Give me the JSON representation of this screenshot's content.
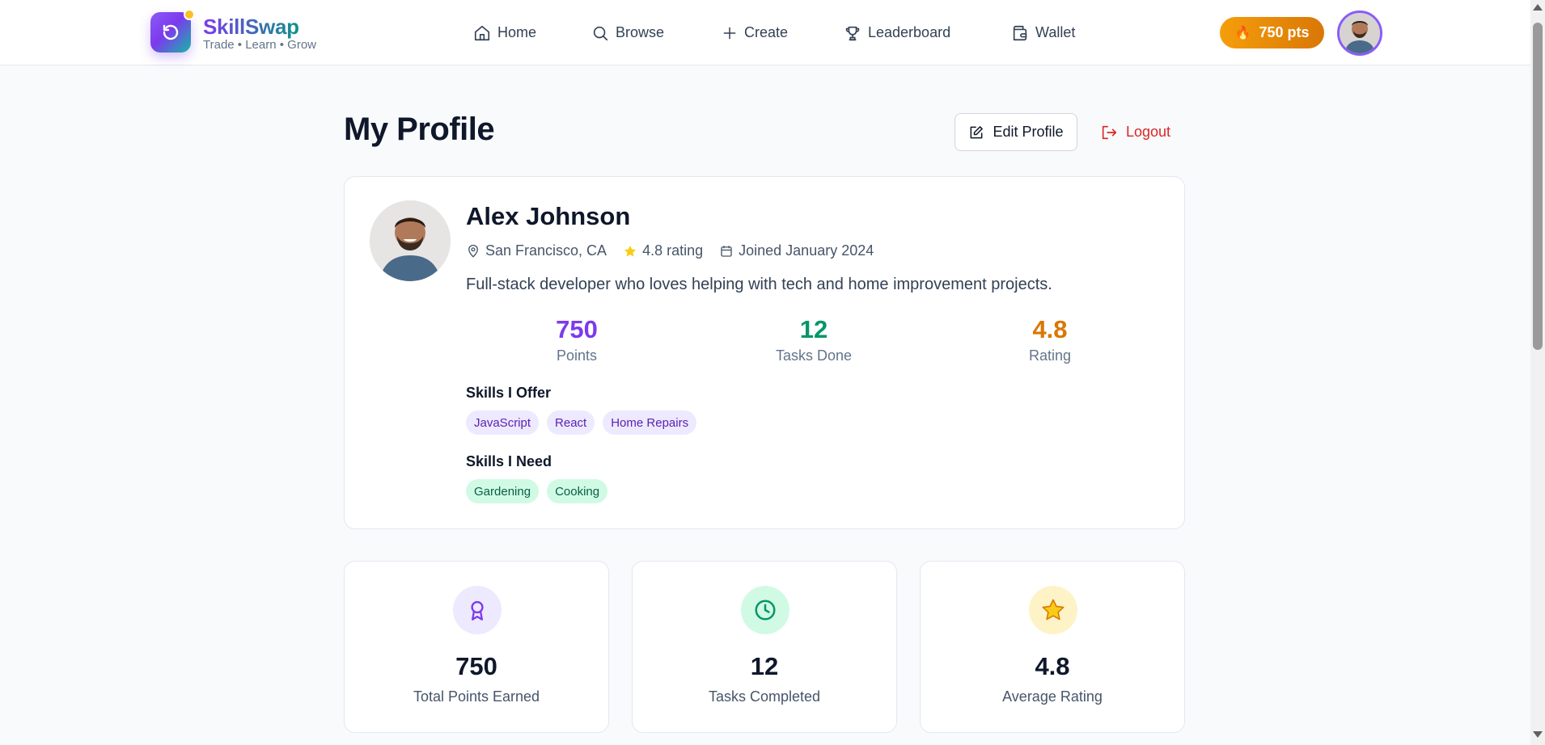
{
  "brand": {
    "name": "SkillSwap",
    "tagline": "Trade • Learn • Grow"
  },
  "nav": [
    {
      "label": "Home",
      "icon": "home-icon"
    },
    {
      "label": "Browse",
      "icon": "search-icon"
    },
    {
      "label": "Create",
      "icon": "plus-icon"
    },
    {
      "label": "Leaderboard",
      "icon": "trophy-icon"
    },
    {
      "label": "Wallet",
      "icon": "wallet-icon"
    }
  ],
  "header": {
    "points_label": "750 pts",
    "points_icon": "flame-icon"
  },
  "page": {
    "title": "My Profile",
    "edit_label": "Edit Profile",
    "logout_label": "Logout"
  },
  "profile": {
    "name": "Alex Johnson",
    "location": "San Francisco, CA",
    "rating_text": "4.8 rating",
    "joined": "Joined January 2024",
    "bio": "Full-stack developer who loves helping with tech and home improvement projects.",
    "stats": [
      {
        "value": "750",
        "label": "Points",
        "color": "#7c3aed"
      },
      {
        "value": "12",
        "label": "Tasks Done",
        "color": "#059669"
      },
      {
        "value": "4.8",
        "label": "Rating",
        "color": "#d97706"
      }
    ],
    "skills_offer_title": "Skills I Offer",
    "skills_offer": [
      "JavaScript",
      "React",
      "Home Repairs"
    ],
    "skills_need_title": "Skills I Need",
    "skills_need": [
      "Gardening",
      "Cooking"
    ]
  },
  "summary_cards": [
    {
      "value": "750",
      "label": "Total Points Earned",
      "icon": "award-icon",
      "bg": "#ede9fe",
      "fg": "#7c3aed"
    },
    {
      "value": "12",
      "label": "Tasks Completed",
      "icon": "clock-icon",
      "bg": "#d1fae5",
      "fg": "#059669"
    },
    {
      "value": "4.8",
      "label": "Average Rating",
      "icon": "star-icon",
      "bg": "#fef3c7",
      "fg": "#d97706"
    }
  ],
  "colors": {
    "brand_purple": "#7c3aed",
    "brand_teal": "#0d9488",
    "points_orange": "#f59e0b",
    "logout_red": "#dc2626"
  }
}
